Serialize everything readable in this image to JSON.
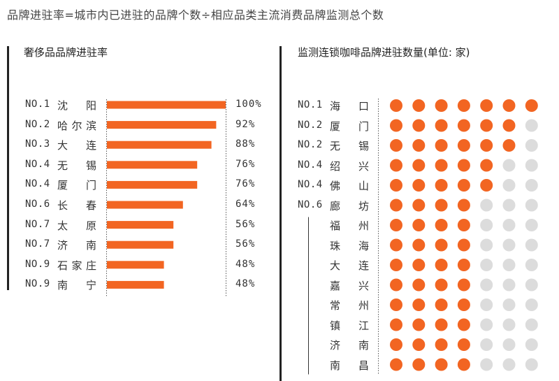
{
  "header": "品牌进驻率=城市内已进驻的品牌个数÷相应品类主流消费品牌监测总个数",
  "left_title": "奢侈品品牌进驻率",
  "right_title": "监测连锁咖啡品牌进驻数量(单位: 家)",
  "colors": {
    "bar": "#f26522",
    "dot_on": "#f26522",
    "dot_off": "#dcdcdc",
    "axis": "#222222"
  },
  "chart_data": [
    {
      "type": "bar",
      "title": "奢侈品品牌进驻率",
      "orientation": "horizontal",
      "categories": [
        "沈阳",
        "哈尔滨",
        "大连",
        "无锡",
        "厦门",
        "长春",
        "太原",
        "济南",
        "石家庄",
        "南宁"
      ],
      "ranks": [
        "NO.1",
        "NO.2",
        "NO.3",
        "NO.4",
        "NO.4",
        "NO.6",
        "NO.7",
        "NO.7",
        "NO.9",
        "NO.9"
      ],
      "values": [
        100,
        92,
        88,
        76,
        76,
        64,
        56,
        56,
        48,
        48
      ],
      "value_labels": [
        "100%",
        "92%",
        "88%",
        "76%",
        "76%",
        "64%",
        "56%",
        "56%",
        "48%",
        "48%"
      ],
      "xlim": [
        0,
        100
      ]
    },
    {
      "type": "dot",
      "title": "监测连锁咖啡品牌进驻数量(单位: 家)",
      "max_dots": 7,
      "categories": [
        "海口",
        "厦门",
        "无锡",
        "绍兴",
        "佛山",
        "廊坊",
        "福州",
        "珠海",
        "大连",
        "嘉兴",
        "常州",
        "镇江",
        "济南",
        "南昌"
      ],
      "ranks": [
        "NO.1",
        "NO.2",
        "NO.2",
        "NO.4",
        "NO.4",
        "NO.6",
        "",
        "",
        "",
        "",
        "",
        "",
        "",
        ""
      ],
      "values": [
        7,
        6,
        6,
        5,
        5,
        4,
        4,
        4,
        4,
        4,
        4,
        4,
        4,
        4
      ]
    }
  ]
}
